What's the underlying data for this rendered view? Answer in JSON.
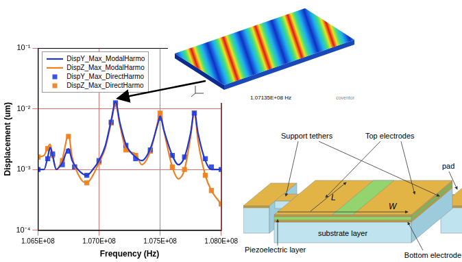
{
  "chart_data": {
    "type": "line",
    "x_label": "Frequency (Hz)",
    "y_label": "Displacement (um)",
    "log": "y",
    "grid": true,
    "legend": "upper left",
    "xlim": [
      106500000,
      108000000
    ],
    "xticks": [
      {
        "value": 106500000,
        "label": "1.065E+08"
      },
      {
        "value": 107000000,
        "label": "1.070E+08"
      },
      {
        "value": 107500000,
        "label": "1.075E+08"
      },
      {
        "value": 108000000,
        "label": "1.080E+08"
      }
    ],
    "ylim": [
      0.0001,
      0.1
    ],
    "yticks": [
      {
        "value": 0.0001,
        "label": "10⁻⁴"
      },
      {
        "value": 0.001,
        "label": "10⁻³"
      },
      {
        "value": 0.01,
        "label": "10⁻²"
      },
      {
        "value": 0.1,
        "label": "10⁻¹"
      }
    ],
    "series": [
      {
        "name": "DispY_Max_ModalHarmo",
        "color": "#2236d0",
        "line_style": "solid",
        "marker": "none",
        "x": [
          106500000,
          106550000,
          106580000,
          106600000,
          106620000,
          106650000,
          106700000,
          106750000,
          106780000,
          106850000,
          106900000,
          106950000,
          107000000,
          107050000,
          107100000,
          107135000,
          107170000,
          107220000,
          107300000,
          107350000,
          107420000,
          107480000,
          107500000,
          107530000,
          107600000,
          107650000,
          107700000,
          107750000,
          107780000,
          107810000,
          107870000,
          107920000,
          108000000
        ],
        "values": [
          0.001,
          0.001,
          0.0016,
          0.0023,
          0.0017,
          0.001,
          0.0013,
          0.0022,
          0.0014,
          0.0009,
          0.0008,
          0.001,
          0.0014,
          0.0024,
          0.0065,
          0.013,
          0.006,
          0.0026,
          0.0016,
          0.0014,
          0.0022,
          0.0055,
          0.0075,
          0.0045,
          0.0017,
          0.0012,
          0.0016,
          0.004,
          0.009,
          0.004,
          0.0014,
          0.001,
          0.001
        ]
      },
      {
        "name": "DispZ_Max_ModalHarmo",
        "color": "#f07f1e",
        "line_style": "solid",
        "marker": "none",
        "x": [
          106500000,
          106550000,
          106580000,
          106600000,
          106620000,
          106650000,
          106700000,
          106750000,
          106780000,
          106850000,
          106900000,
          106950000,
          107000000,
          107050000,
          107100000,
          107135000,
          107170000,
          107220000,
          107300000,
          107350000,
          107420000,
          107480000,
          107500000,
          107530000,
          107600000,
          107650000,
          107700000,
          107750000,
          107780000,
          107810000,
          107870000,
          107920000,
          108000000
        ],
        "values": [
          0.0016,
          0.0017,
          0.0023,
          0.0026,
          0.0017,
          0.001,
          0.0015,
          0.0037,
          0.0016,
          0.0007,
          0.0006,
          0.0008,
          0.0013,
          0.0022,
          0.006,
          0.012,
          0.0055,
          0.0022,
          0.0018,
          0.0012,
          0.002,
          0.006,
          0.009,
          0.0045,
          0.0011,
          0.0007,
          0.001,
          0.0035,
          0.009,
          0.003,
          0.0008,
          0.00045,
          0.00027
        ]
      },
      {
        "name": "DispY_Max_DirectHarmo",
        "color": "#3a55e6",
        "line_style": "none",
        "marker": "square",
        "x": [
          106500000,
          106580000,
          106620000,
          106700000,
          106750000,
          106800000,
          106900000,
          107000000,
          107100000,
          107135000,
          107220000,
          107300000,
          107420000,
          107500000,
          107600000,
          107700000,
          107780000,
          107870000,
          107920000,
          108000000
        ],
        "values": [
          0.001,
          0.0015,
          0.0018,
          0.0012,
          0.002,
          0.0011,
          0.0008,
          0.0014,
          0.006,
          0.0125,
          0.0025,
          0.0015,
          0.0021,
          0.007,
          0.0017,
          0.0016,
          0.0085,
          0.0015,
          0.0011,
          0.001
        ]
      },
      {
        "name": "DispZ_Max_DirectHarmo",
        "color": "#f08a30",
        "line_style": "none",
        "marker": "square",
        "x": [
          106500000,
          106580000,
          106620000,
          106700000,
          106750000,
          106800000,
          106900000,
          107000000,
          107100000,
          107135000,
          107220000,
          107300000,
          107420000,
          107500000,
          107600000,
          107700000,
          107780000,
          107870000,
          107920000,
          108000000
        ],
        "values": [
          0.0016,
          0.0022,
          0.0017,
          0.0014,
          0.0035,
          0.0011,
          0.0006,
          0.0013,
          0.0058,
          0.0115,
          0.0021,
          0.0017,
          0.002,
          0.0085,
          0.0011,
          0.001,
          0.0085,
          0.0008,
          0.00045,
          0.00027
        ]
      }
    ]
  },
  "inset_image": {
    "caption": "1.07135E+08 Hz",
    "logo": "coventor"
  },
  "diagram": {
    "support_tethers": "Support tethers",
    "top_electrodes": "Top electrodes",
    "pad": "pad",
    "length": "L",
    "width": "W",
    "piezoelectric_layer": "Piezoelectric layer",
    "substrate_layer": "substrate layer",
    "bottom_electrode": "Bottom electrode"
  }
}
